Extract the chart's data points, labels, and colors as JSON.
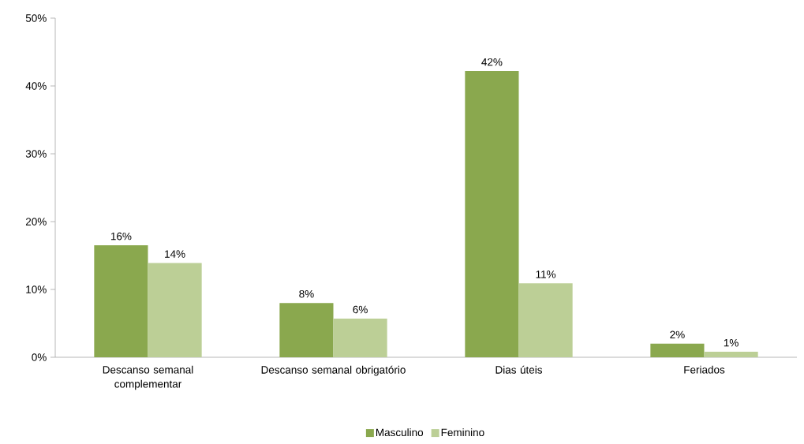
{
  "chart_data": {
    "type": "bar",
    "categories": [
      "Descanso semanal complementar",
      "Descanso semanal obrigatório",
      "Dias úteis",
      "Feriados"
    ],
    "series": [
      {
        "name": "Masculino",
        "color": "#8aa84e",
        "values": [
          16.5,
          8,
          42.2,
          2
        ],
        "value_labels": [
          "16%",
          "8%",
          "42%",
          "2%"
        ]
      },
      {
        "name": "Feminino",
        "color": "#bccf96",
        "values": [
          13.9,
          5.7,
          10.9,
          0.8
        ],
        "value_labels": [
          "14%",
          "6%",
          "11%",
          "1%"
        ]
      }
    ],
    "ylim": [
      0,
      50
    ],
    "yticks": [
      {
        "value": 0,
        "label": "0%"
      },
      {
        "value": 10,
        "label": "10%"
      },
      {
        "value": 20,
        "label": "20%"
      },
      {
        "value": 30,
        "label": "30%"
      },
      {
        "value": 40,
        "label": "40%"
      },
      {
        "value": 50,
        "label": "50%"
      }
    ],
    "legend": "bottom"
  }
}
